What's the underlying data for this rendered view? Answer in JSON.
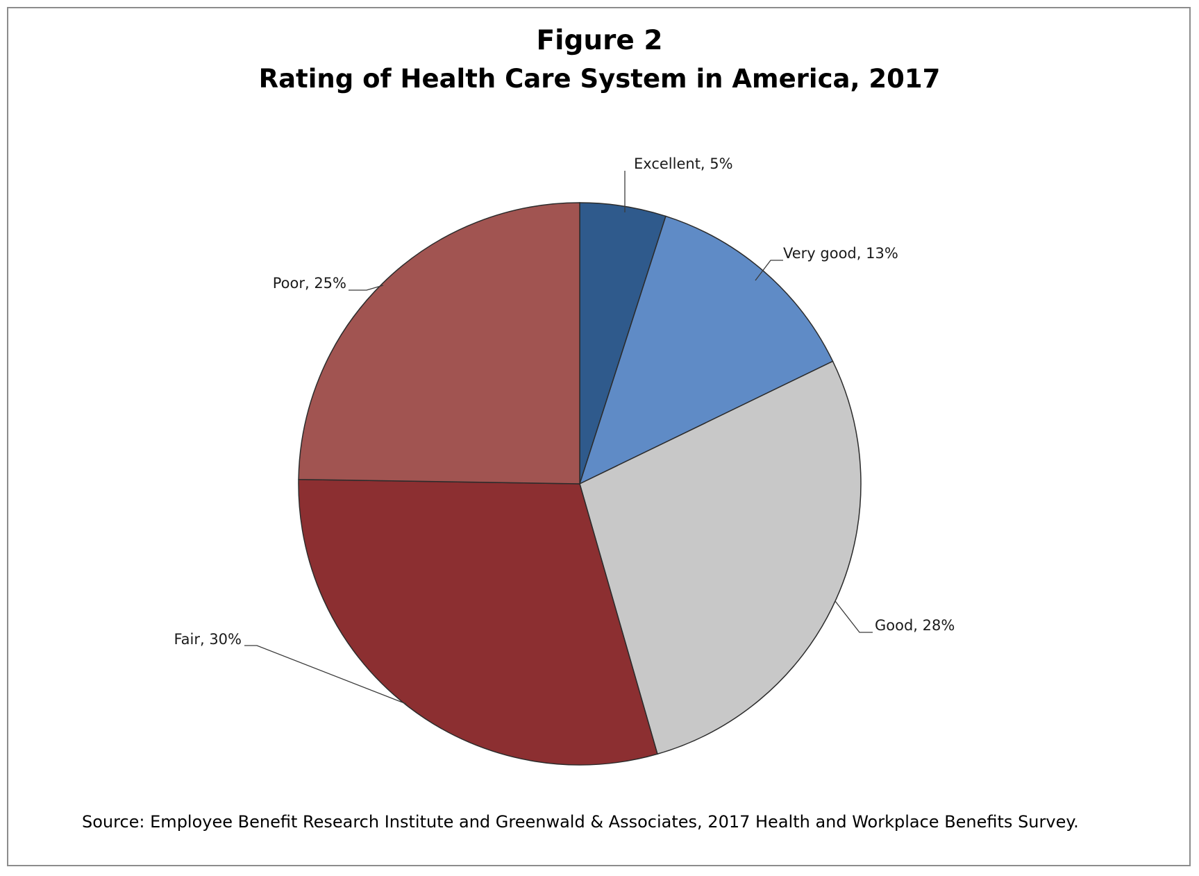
{
  "chart_data": {
    "type": "pie",
    "title": "Figure 2",
    "subtitle": "Rating of Health Care System in America, 2017",
    "slices": [
      {
        "label": "Excellent",
        "value": 5,
        "display": "Excellent, 5%",
        "color": "#2f5a8c"
      },
      {
        "label": "Very good",
        "value": 13,
        "display": "Very good, 13%",
        "color": "#5f8bc6"
      },
      {
        "label": "Good",
        "value": 28,
        "display": "Good, 28%",
        "color": "#c8c8c8"
      },
      {
        "label": "Fair",
        "value": 30,
        "display": "Fair, 30%",
        "color": "#8c2f31"
      },
      {
        "label": "Poor",
        "value": 25,
        "display": "Poor, 25%",
        "color": "#a15451"
      }
    ],
    "start_angle": "12 o'clock",
    "direction": "clockwise",
    "source": "Source: Employee Benefit Research Institute and Greenwald & Associates, 2017 Health and Workplace Benefits Survey."
  }
}
